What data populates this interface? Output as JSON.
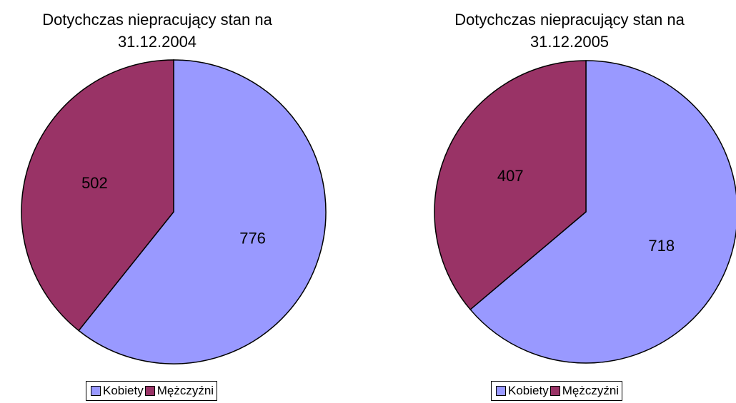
{
  "chart_data": [
    {
      "type": "pie",
      "title": "Dotychczas niepracujący stan na 31.12.2004",
      "categories": [
        "Kobiety",
        "Mężczyźni"
      ],
      "values": [
        776,
        502
      ],
      "colors": [
        "#9999ff",
        "#993366"
      ],
      "legend": "bottom"
    },
    {
      "type": "pie",
      "title": "Dotychczas niepracujący stan na 31.12.2005",
      "categories": [
        "Kobiety",
        "Mężczyźni"
      ],
      "values": [
        718,
        407
      ],
      "colors": [
        "#9999ff",
        "#993366"
      ],
      "legend": "bottom"
    }
  ]
}
